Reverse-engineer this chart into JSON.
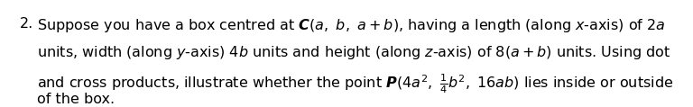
{
  "number": "2.",
  "background_color": "#ffffff",
  "text_color": "#000000",
  "figsize": [
    7.68,
    1.19
  ],
  "dpi": 100,
  "fontsize": 11.5
}
